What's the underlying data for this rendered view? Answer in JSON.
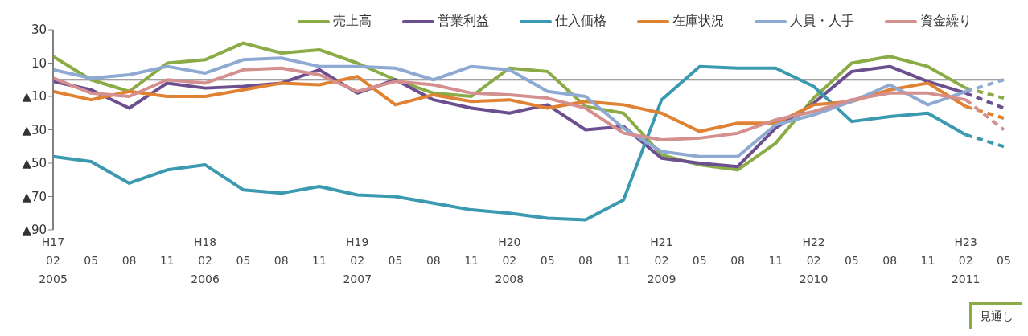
{
  "chart_data": {
    "type": "line",
    "categories": [
      "H17\n02\n2005",
      "05",
      "08",
      "11",
      "H18\n02\n2006",
      "05",
      "08",
      "11",
      "H19\n02\n2007",
      "05",
      "08",
      "11",
      "H20\n02\n2008",
      "05",
      "08",
      "11",
      "H21\n02\n2009",
      "05",
      "08",
      "11",
      "H22\n02\n2010",
      "05",
      "08",
      "11",
      "H23\n02\n2011",
      "05"
    ],
    "series": [
      {
        "name": "売上高",
        "color": "#8aab46",
        "values": [
          14,
          0,
          -7,
          10,
          12,
          22,
          16,
          18,
          10,
          0,
          -8,
          -10,
          7,
          5,
          -16,
          -20,
          -45,
          -51,
          -54,
          -38,
          -11,
          10,
          14,
          8,
          -5,
          null
        ]
      },
      {
        "name": "営業利益",
        "color": "#6b4f8f",
        "values": [
          -1,
          -6,
          -17,
          -2,
          -5,
          -4,
          -2,
          6,
          -8,
          0,
          -12,
          -17,
          -20,
          -15,
          -30,
          -28,
          -47,
          -50,
          -52,
          -29,
          -14,
          5,
          8,
          -1,
          -8,
          null
        ]
      },
      {
        "name": "仕入価格",
        "color": "#3b99b0",
        "values": [
          -46,
          -49,
          -62,
          -54,
          -51,
          -66,
          -68,
          -64,
          -69,
          -70,
          -74,
          -78,
          -80,
          -83,
          -84,
          -72,
          -12,
          8,
          7,
          7,
          -4,
          -25,
          -22,
          -20,
          -33,
          null
        ]
      },
      {
        "name": "在庫状況",
        "color": "#e08234",
        "values": [
          -7,
          -12,
          -7,
          -10,
          -10,
          -6,
          -2,
          -3,
          2,
          -15,
          -9,
          -13,
          -12,
          -17,
          -13,
          -15,
          -20,
          -31,
          -26,
          -26,
          -15,
          -13,
          -6,
          -2,
          -16,
          null
        ]
      },
      {
        "name": "人員・人手",
        "color": "#8ea9d2",
        "values": [
          6,
          1,
          3,
          8,
          4,
          12,
          13,
          8,
          8,
          7,
          0,
          8,
          6,
          -7,
          -10,
          -29,
          -43,
          -46,
          -46,
          -27,
          -21,
          -13,
          -3,
          -15,
          -7,
          null
        ]
      },
      {
        "name": "資金繰り",
        "color": "#d48f8f",
        "values": [
          1,
          -8,
          -10,
          0,
          -2,
          6,
          7,
          3,
          -7,
          -1,
          -3,
          -8,
          -9,
          -11,
          -17,
          -32,
          -36,
          -35,
          -32,
          -24,
          -19,
          -12,
          -8,
          -8,
          -12,
          null
        ]
      },
      {
        "color": "#8aab46",
        "line_style": "dashed",
        "values": [
          null,
          null,
          null,
          null,
          null,
          null,
          null,
          null,
          null,
          null,
          null,
          null,
          null,
          null,
          null,
          null,
          null,
          null,
          null,
          null,
          null,
          null,
          null,
          null,
          -5,
          -11
        ]
      },
      {
        "color": "#6b4f8f",
        "line_style": "dashed",
        "values": [
          null,
          null,
          null,
          null,
          null,
          null,
          null,
          null,
          null,
          null,
          null,
          null,
          null,
          null,
          null,
          null,
          null,
          null,
          null,
          null,
          null,
          null,
          null,
          null,
          -8,
          -17
        ]
      },
      {
        "color": "#3b99b0",
        "line_style": "dashed",
        "values": [
          null,
          null,
          null,
          null,
          null,
          null,
          null,
          null,
          null,
          null,
          null,
          null,
          null,
          null,
          null,
          null,
          null,
          null,
          null,
          null,
          null,
          null,
          null,
          null,
          -33,
          -40
        ]
      },
      {
        "color": "#e08234",
        "line_style": "dashed",
        "values": [
          null,
          null,
          null,
          null,
          null,
          null,
          null,
          null,
          null,
          null,
          null,
          null,
          null,
          null,
          null,
          null,
          null,
          null,
          null,
          null,
          null,
          null,
          null,
          null,
          -16,
          -23
        ]
      },
      {
        "color": "#8ea9d2",
        "line_style": "dashed",
        "values": [
          null,
          null,
          null,
          null,
          null,
          null,
          null,
          null,
          null,
          null,
          null,
          null,
          null,
          null,
          null,
          null,
          null,
          null,
          null,
          null,
          null,
          null,
          null,
          null,
          -7,
          0
        ]
      },
      {
        "color": "#d48f8f",
        "line_style": "dashed",
        "values": [
          null,
          null,
          null,
          null,
          null,
          null,
          null,
          null,
          null,
          null,
          null,
          null,
          null,
          null,
          null,
          null,
          null,
          null,
          null,
          null,
          null,
          null,
          null,
          null,
          -12,
          -30
        ]
      }
    ],
    "ylim": [
      -90,
      30
    ],
    "yticks": [
      30,
      10,
      {
        "value": -10,
        "label": "▲10"
      },
      {
        "value": -30,
        "label": "▲30"
      },
      {
        "value": -50,
        "label": "▲50"
      },
      {
        "value": -70,
        "label": "▲70"
      },
      {
        "value": -90,
        "label": "▲90"
      }
    ],
    "ref_lines": [
      {
        "axis": "y",
        "value": 0,
        "color": "#808080"
      }
    ],
    "annotations": [
      "見通し"
    ],
    "legend": "top",
    "grid": false,
    "line_style": "solid",
    "marker": "none"
  }
}
